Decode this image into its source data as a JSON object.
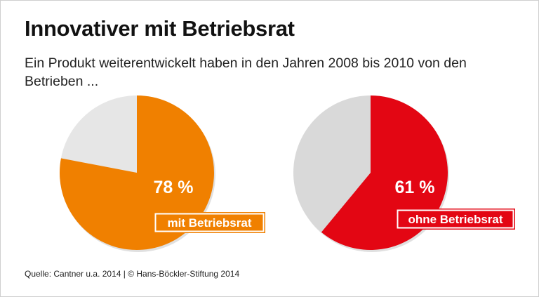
{
  "title": "Innovativer mit Betriebsrat",
  "subtitle": "Ein Produkt weiterentwickelt haben in den Jahren 2008 bis 2010 von den Betrieben ...",
  "source": "Quelle: Cantner u.a. 2014 | © Hans-Böckler-Stiftung 2014",
  "chart_data": [
    {
      "type": "pie",
      "label": "mit Betriebsrat",
      "value": 78,
      "value_label": "78 %",
      "color": "#f08000",
      "rest_color": "#e6e6e6"
    },
    {
      "type": "pie",
      "label": "ohne Betriebsrat",
      "value": 61,
      "value_label": "61 %",
      "color": "#e30613",
      "rest_color": "#d9d9d9"
    }
  ]
}
